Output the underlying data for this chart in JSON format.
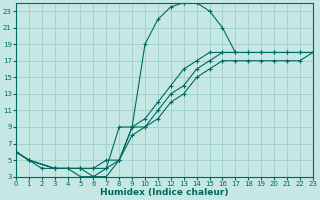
{
  "xlabel": "Humidex (Indice chaleur)",
  "bg_color": "#c5e8e4",
  "grid_color": "#9ecfca",
  "line_color": "#006860",
  "xlim": [
    0,
    23
  ],
  "ylim": [
    3,
    24
  ],
  "xticks": [
    0,
    1,
    2,
    3,
    4,
    5,
    6,
    7,
    8,
    9,
    10,
    11,
    12,
    13,
    14,
    15,
    16,
    17,
    18,
    19,
    20,
    21,
    22,
    23
  ],
  "yticks": [
    3,
    5,
    7,
    9,
    11,
    13,
    15,
    17,
    19,
    21,
    23
  ],
  "curve1_x": [
    0,
    1,
    2,
    3,
    4,
    5,
    6,
    7,
    8,
    9,
    10,
    11,
    12,
    13,
    14,
    15,
    16,
    17
  ],
  "curve1_y": [
    6,
    5,
    4,
    4,
    4,
    3,
    3,
    3,
    5,
    9,
    19,
    22,
    23.5,
    24,
    24,
    23,
    21,
    18
  ],
  "curve2_x": [
    0,
    1,
    3,
    5,
    6,
    7,
    8,
    9,
    10,
    11,
    12,
    13,
    14,
    15,
    16,
    17,
    18,
    19,
    20,
    21,
    22,
    23
  ],
  "curve2_y": [
    6,
    5,
    4,
    4,
    4,
    4,
    9,
    9,
    10,
    12,
    14,
    16,
    17,
    18,
    18,
    18,
    18,
    18,
    18,
    18,
    18,
    18
  ],
  "curve3_x": [
    0,
    1,
    3,
    5,
    6,
    7,
    8,
    9,
    10,
    11,
    12,
    13,
    14,
    15,
    16,
    17,
    18,
    19,
    20,
    21,
    22,
    23
  ],
  "curve3_y": [
    6,
    5,
    4,
    4,
    3,
    4,
    5,
    8,
    9,
    10,
    12,
    13,
    15,
    16,
    17,
    17,
    17,
    17,
    17,
    17,
    17,
    18
  ],
  "curve4_x": [
    0,
    1,
    3,
    5,
    6,
    7,
    8,
    9,
    10,
    11,
    12,
    13,
    14,
    15,
    16,
    17,
    18,
    19,
    20,
    21,
    22,
    23
  ],
  "curve4_y": [
    6,
    5,
    4,
    4,
    4,
    5,
    5,
    9,
    9,
    11,
    13,
    14,
    16,
    17,
    18,
    18,
    18,
    18,
    18,
    18,
    18,
    18
  ]
}
